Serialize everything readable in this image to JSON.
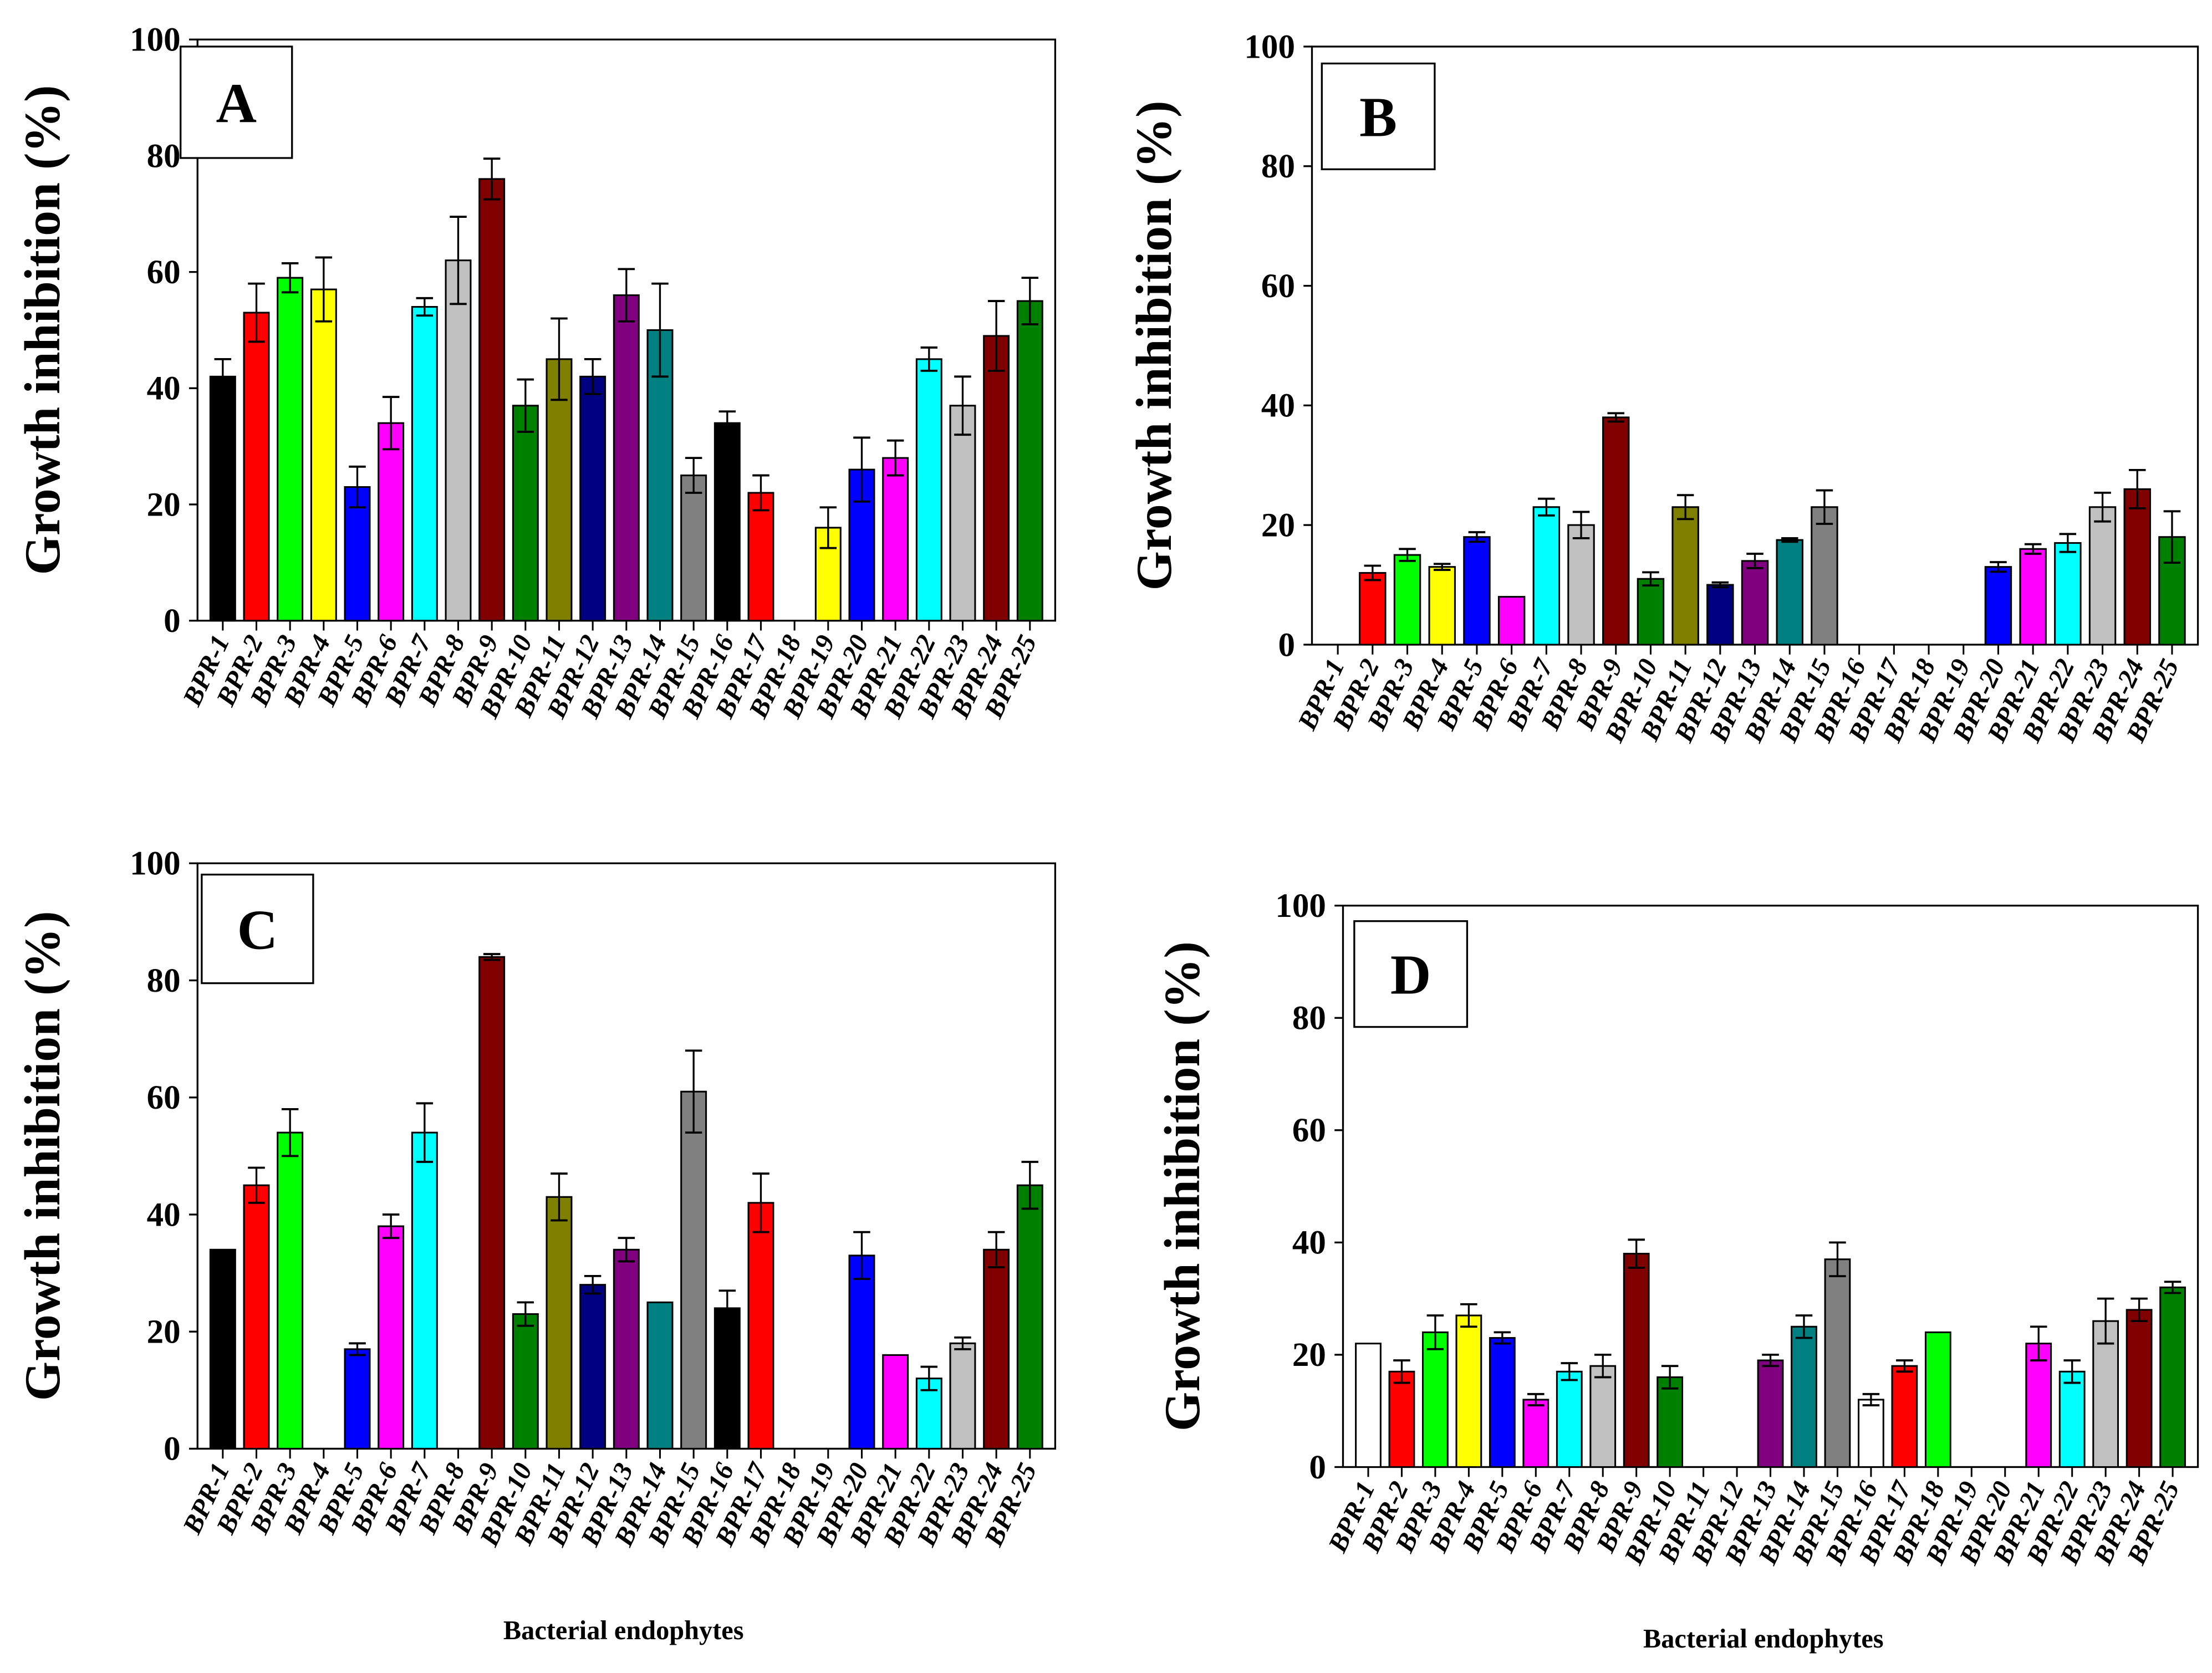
{
  "chart_data": [
    {
      "type": "bar",
      "panel": "A",
      "ylabel": "Growth inhibition (%)",
      "xlabel": "",
      "ylim": [
        0,
        100
      ],
      "yticks": [
        0,
        20,
        40,
        60,
        80,
        100
      ],
      "values": [
        42,
        53,
        59,
        57,
        23,
        34,
        54,
        62,
        76,
        37,
        45,
        42,
        56,
        50,
        25,
        34,
        22,
        0,
        16,
        26,
        28,
        45,
        37,
        49,
        55
      ],
      "errors": [
        3,
        5,
        2.5,
        5.5,
        3.5,
        4.5,
        1.5,
        7.5,
        3.5,
        4.5,
        7,
        3,
        4.5,
        8,
        3,
        2,
        3,
        0,
        3.5,
        5.5,
        3,
        2,
        5,
        6,
        4
      ]
    },
    {
      "type": "bar",
      "panel": "B",
      "ylabel": "Growth inhibition (%)",
      "xlabel": "",
      "ylim": [
        0,
        100
      ],
      "yticks": [
        0,
        20,
        40,
        60,
        80,
        100
      ],
      "values": [
        0,
        12,
        15,
        13,
        18,
        8,
        23,
        20,
        38,
        11,
        23,
        10,
        14,
        17.5,
        23,
        0,
        0,
        0,
        0,
        13,
        16,
        17,
        23,
        26,
        18
      ],
      "errors": [
        0,
        1.2,
        1,
        0.5,
        0.8,
        0,
        1.4,
        2.2,
        0.7,
        1.1,
        2,
        0.4,
        1.2,
        0.3,
        2.8,
        0,
        0,
        0,
        0,
        0.8,
        0.8,
        1.5,
        2.4,
        3.2,
        4.3
      ]
    },
    {
      "type": "bar",
      "panel": "C",
      "ylabel": "Growth inhibition (%)",
      "xlabel": "Bacterial endophytes",
      "ylim": [
        0,
        100
      ],
      "yticks": [
        0,
        20,
        40,
        60,
        80,
        100
      ],
      "values": [
        34,
        45,
        54,
        0,
        17,
        38,
        54,
        0,
        84,
        23,
        43,
        28,
        34,
        25,
        61,
        24,
        42,
        0,
        0,
        33,
        16,
        12,
        18,
        34,
        45
      ],
      "errors": [
        0,
        3,
        4,
        0,
        1,
        2,
        5,
        0,
        0.5,
        2,
        4,
        1.5,
        2,
        0,
        7,
        3,
        5,
        0,
        0,
        4,
        0,
        2,
        1,
        3,
        4
      ]
    },
    {
      "type": "bar",
      "panel": "D",
      "ylabel": "Growth inhibition (%)",
      "xlabel": "Bacterial endophytes",
      "ylim": [
        0,
        100
      ],
      "yticks": [
        0,
        20,
        40,
        60,
        80,
        100
      ],
      "values": [
        22,
        17,
        24,
        27,
        23,
        12,
        17,
        18,
        38,
        16,
        0,
        0,
        19,
        25,
        37,
        12,
        18,
        24,
        0,
        0,
        22,
        17,
        26,
        28,
        32
      ],
      "errors": [
        0,
        2,
        3,
        2,
        1,
        1,
        1.5,
        2,
        2.5,
        2,
        0,
        0,
        1,
        2,
        3,
        1,
        1,
        0,
        0,
        0,
        3,
        2,
        4,
        2,
        1
      ]
    }
  ],
  "categories": [
    "BPR-1",
    "BPR-2",
    "BPR-3",
    "BPR-4",
    "BPR-5",
    "BPR-6",
    "BPR-7",
    "BPR-8",
    "BPR-9",
    "BPR-10",
    "BPR-11",
    "BPR-12",
    "BPR-13",
    "BPR-14",
    "BPR-15",
    "BPR-16",
    "BPR-17",
    "BPR-18",
    "BPR-19",
    "BPR-20",
    "BPR-21",
    "BPR-22",
    "BPR-23",
    "BPR-24",
    "BPR-25"
  ],
  "colors": [
    "#000000",
    "#ff0000",
    "#00ff00",
    "#ffff00",
    "#0000ff",
    "#ff00ff",
    "#00ffff",
    "#c0c0c0",
    "#800000",
    "#008000",
    "#808000",
    "#000080",
    "#800080",
    "#008080",
    "#808080",
    "#000000",
    "#ff0000",
    "#00ff00",
    "#ffff00",
    "#0000ff",
    "#ff00ff",
    "#00ffff",
    "#c0c0c0",
    "#800000",
    "#008000"
  ],
  "panel_d_overrides": {
    "0": "#ffffff",
    "15": "#ffffff"
  }
}
